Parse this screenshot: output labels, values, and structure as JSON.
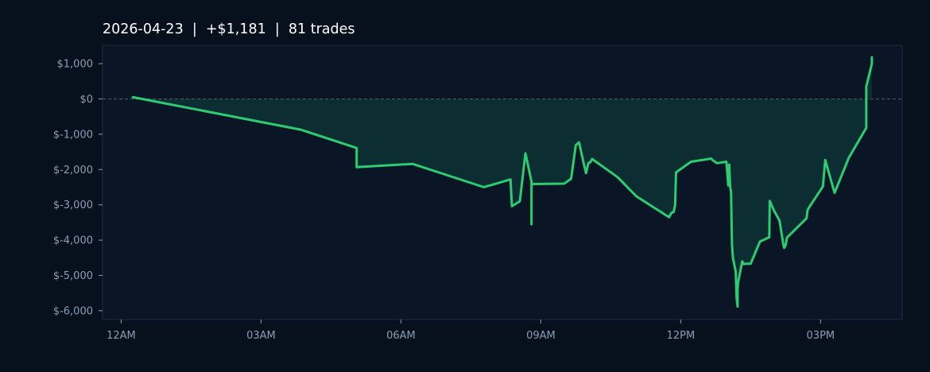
{
  "chart_data": {
    "type": "area",
    "title": "2026-04-23  |  +$1,181  |  81 trades",
    "xlabel": "",
    "ylabel": "",
    "x_unit": "time of day (hours)",
    "xlim": [
      -0.4,
      16.75
    ],
    "ylim": [
      -6250,
      1520
    ],
    "x_ticks": [
      {
        "value": 0,
        "label": "12AM"
      },
      {
        "value": 3,
        "label": "03AM"
      },
      {
        "value": 6,
        "label": "06AM"
      },
      {
        "value": 9,
        "label": "09AM"
      },
      {
        "value": 12,
        "label": "12PM"
      },
      {
        "value": 15,
        "label": "03PM"
      }
    ],
    "y_ticks": [
      {
        "value": 1000,
        "label": "$1,000"
      },
      {
        "value": 0,
        "label": "$0"
      },
      {
        "value": -1000,
        "label": "$-1,000"
      },
      {
        "value": -2000,
        "label": "$-2,000"
      },
      {
        "value": -3000,
        "label": "$-3,000"
      },
      {
        "value": -4000,
        "label": "$-4,000"
      },
      {
        "value": -5000,
        "label": "$-5,000"
      },
      {
        "value": -6000,
        "label": "$-6,000"
      }
    ],
    "grid": false,
    "zero_line": true,
    "colors": {
      "line": "#2ecc71",
      "fill": "#0d2e31",
      "plot_bg": "#0a1626",
      "page_bg": "#07111d",
      "border": "#1d2c40",
      "zero_line": "#4f5d6d"
    },
    "series": [
      {
        "x": [
          0.25,
          3.85,
          5.05,
          5.05,
          6.25,
          7.78,
          8.35,
          8.38,
          8.55,
          8.67,
          8.8,
          8.8,
          8.8,
          8.82,
          9.5,
          9.65,
          9.75,
          9.82,
          9.92,
          9.97,
          10.02,
          10.07,
          10.1,
          10.65,
          11.05,
          11.75,
          11.8,
          11.85,
          11.88,
          11.9,
          12.22,
          12.65,
          12.7,
          12.78,
          12.98,
          13.02,
          13.04,
          13.06,
          13.08,
          13.1,
          13.12,
          13.18,
          13.2,
          13.22,
          13.22,
          13.23,
          13.32,
          13.35,
          13.4,
          13.5,
          13.7,
          13.9,
          13.91,
          14.0,
          14.12,
          14.2,
          14.22,
          14.25,
          14.28,
          14.7,
          14.72,
          14.75,
          15.05,
          15.1,
          15.3,
          15.55,
          15.6,
          15.98,
          15.98,
          16.1,
          16.1
        ],
        "y": [
          50,
          -870,
          -1390,
          -1930,
          -1840,
          -2500,
          -2280,
          -3040,
          -2900,
          -1540,
          -2350,
          -3550,
          -2420,
          -2410,
          -2400,
          -2260,
          -1310,
          -1230,
          -1830,
          -2100,
          -1820,
          -1780,
          -1700,
          -2220,
          -2760,
          -3350,
          -3230,
          -3200,
          -3000,
          -2080,
          -1780,
          -1690,
          -1750,
          -1820,
          -1780,
          -2450,
          -1860,
          -2480,
          -2650,
          -4150,
          -4500,
          -4900,
          -5650,
          -5880,
          -5400,
          -5200,
          -4600,
          -4680,
          -4670,
          -4670,
          -4040,
          -3920,
          -2890,
          -3160,
          -3450,
          -4120,
          -4220,
          -4150,
          -3930,
          -3380,
          -3150,
          -3080,
          -2480,
          -1730,
          -2660,
          -1850,
          -1680,
          -820,
          350,
          1000,
          1181
        ]
      }
    ]
  }
}
